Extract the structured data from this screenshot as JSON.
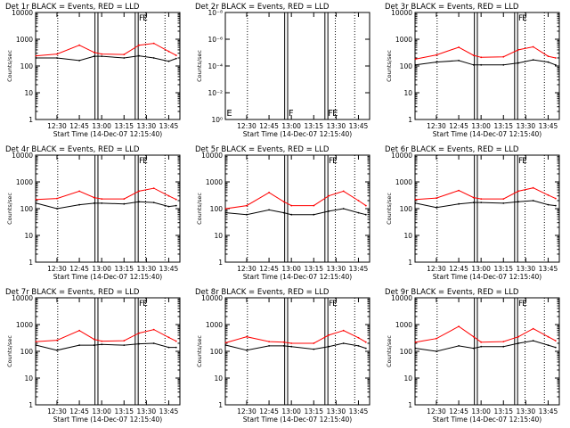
{
  "figure": {
    "xlabel": "Start Time (14-Dec-07 12:15:40)",
    "ylabel": "Counts/sec",
    "x_ticks": [
      "12:30",
      "12:45",
      "13:00",
      "13:15",
      "13:30",
      "13:45"
    ],
    "y_ticks": [
      "1",
      "10",
      "100",
      "1000",
      "10000"
    ],
    "y_ticks_det2": [
      "10⁰",
      "10⁻²",
      "10⁻⁴",
      "10⁻⁶",
      "10⁻⁸"
    ],
    "colors": {
      "events": "#000000",
      "lld": "#ff0000",
      "background": "#ffffff"
    }
  },
  "chart_data": [
    {
      "type": "line",
      "title": "Det 1r  BLACK = Events, RED = LLD",
      "xlabel": "Start Time (14-Dec-07 12:15:40)",
      "ylabel": "Counts/sec",
      "yscale": "log",
      "ylim": [
        1,
        10000
      ],
      "x": [
        "12:16",
        "12:30",
        "12:45",
        "12:55",
        "13:00",
        "13:15",
        "13:25",
        "13:35",
        "13:45",
        "13:50"
      ],
      "series": [
        {
          "name": "Events",
          "color": "#000000",
          "values": [
            200,
            200,
            160,
            230,
            230,
            200,
            240,
            200,
            150,
            190
          ]
        },
        {
          "name": "LLD",
          "color": "#ff0000",
          "values": [
            240,
            280,
            600,
            320,
            280,
            270,
            600,
            700,
            350,
            250
          ]
        }
      ],
      "markers": [
        "F",
        "E"
      ],
      "markers_lower": []
    },
    {
      "type": "line",
      "title": "Det 2r  BLACK = Events, RED = LLD",
      "xlabel": "Start Time (14-Dec-07 12:15:40)",
      "ylabel": "Counts/sec",
      "yscale": "log",
      "ylim": [
        1e-08,
        1
      ],
      "x": [
        "12:16",
        "12:30",
        "12:45",
        "12:55",
        "13:00",
        "13:15",
        "13:25",
        "13:35",
        "13:45",
        "13:50"
      ],
      "series": [],
      "markers": [],
      "markers_lower": [
        "E",
        "F",
        "F",
        "E"
      ]
    },
    {
      "type": "line",
      "title": "Det 3r  BLACK = Events, RED = LLD",
      "xlabel": "Start Time (14-Dec-07 12:15:40)",
      "ylabel": "Counts/sec",
      "yscale": "log",
      "ylim": [
        1,
        10000
      ],
      "x": [
        "12:16",
        "12:30",
        "12:45",
        "12:55",
        "13:00",
        "13:15",
        "13:25",
        "13:35",
        "13:45",
        "13:50"
      ],
      "series": [
        {
          "name": "Events",
          "color": "#000000",
          "values": [
            110,
            140,
            160,
            110,
            110,
            110,
            130,
            170,
            140,
            110
          ]
        },
        {
          "name": "LLD",
          "color": "#ff0000",
          "values": [
            180,
            260,
            500,
            250,
            210,
            220,
            400,
            520,
            230,
            200
          ]
        }
      ],
      "markers": [
        "F",
        "E"
      ],
      "markers_lower": []
    },
    {
      "type": "line",
      "title": "Det 4r  BLACK = Events, RED = LLD",
      "xlabel": "Start Time (14-Dec-07 12:15:40)",
      "ylabel": "Counts/sec",
      "yscale": "log",
      "ylim": [
        1,
        10000
      ],
      "x": [
        "12:16",
        "12:30",
        "12:45",
        "12:55",
        "13:00",
        "13:15",
        "13:25",
        "13:35",
        "13:45",
        "13:50"
      ],
      "series": [
        {
          "name": "Events",
          "color": "#000000",
          "values": [
            160,
            100,
            140,
            160,
            160,
            150,
            180,
            170,
            120,
            130
          ]
        },
        {
          "name": "LLD",
          "color": "#ff0000",
          "values": [
            220,
            240,
            450,
            260,
            230,
            230,
            450,
            580,
            300,
            220
          ]
        }
      ],
      "markers": [
        "F",
        "E"
      ],
      "markers_lower": []
    },
    {
      "type": "line",
      "title": "Det 5r  BLACK = Events, RED = LLD",
      "xlabel": "Start Time (14-Dec-07 12:15:40)",
      "ylabel": "Counts/sec",
      "yscale": "log",
      "ylim": [
        1,
        10000
      ],
      "x": [
        "12:16",
        "12:30",
        "12:45",
        "12:55",
        "13:00",
        "13:15",
        "13:25",
        "13:35",
        "13:45",
        "13:50"
      ],
      "series": [
        {
          "name": "Events",
          "color": "#000000",
          "values": [
            70,
            60,
            90,
            70,
            60,
            60,
            80,
            100,
            70,
            60
          ]
        },
        {
          "name": "LLD",
          "color": "#ff0000",
          "values": [
            100,
            130,
            400,
            180,
            130,
            130,
            300,
            450,
            200,
            130
          ]
        }
      ],
      "markers": [
        "F",
        "E"
      ],
      "markers_lower": []
    },
    {
      "type": "line",
      "title": "Det 6r  BLACK = Events, RED = LLD",
      "xlabel": "Start Time (14-Dec-07 12:15:40)",
      "ylabel": "Counts/sec",
      "yscale": "log",
      "ylim": [
        1,
        10000
      ],
      "x": [
        "12:16",
        "12:30",
        "12:45",
        "12:55",
        "13:00",
        "13:15",
        "13:25",
        "13:35",
        "13:45",
        "13:50"
      ],
      "series": [
        {
          "name": "Events",
          "color": "#000000",
          "values": [
            160,
            110,
            150,
            170,
            170,
            160,
            180,
            200,
            140,
            130
          ]
        },
        {
          "name": "LLD",
          "color": "#ff0000",
          "values": [
            220,
            250,
            480,
            260,
            230,
            230,
            450,
            600,
            320,
            240
          ]
        }
      ],
      "markers": [
        "F",
        "E"
      ],
      "markers_lower": []
    },
    {
      "type": "line",
      "title": "Det 7r  BLACK = Events, RED = LLD",
      "xlabel": "Start Time (14-Dec-07 12:15:40)",
      "ylabel": "Counts/sec",
      "yscale": "log",
      "ylim": [
        1,
        10000
      ],
      "x": [
        "12:16",
        "12:30",
        "12:45",
        "12:55",
        "13:00",
        "13:15",
        "13:25",
        "13:35",
        "13:45",
        "13:50"
      ],
      "series": [
        {
          "name": "Events",
          "color": "#000000",
          "values": [
            170,
            110,
            170,
            170,
            180,
            170,
            190,
            200,
            140,
            140
          ]
        },
        {
          "name": "LLD",
          "color": "#ff0000",
          "values": [
            230,
            260,
            600,
            280,
            240,
            250,
            480,
            650,
            330,
            240
          ]
        }
      ],
      "markers": [
        "F",
        "E"
      ],
      "markers_lower": []
    },
    {
      "type": "line",
      "title": "Det 8r  BLACK = Events, RED = LLD",
      "xlabel": "Start Time (14-Dec-07 12:15:40)",
      "ylabel": "Counts/sec",
      "yscale": "log",
      "ylim": [
        1,
        10000
      ],
      "x": [
        "12:16",
        "12:30",
        "12:45",
        "12:55",
        "13:00",
        "13:15",
        "13:25",
        "13:35",
        "13:45",
        "13:50"
      ],
      "series": [
        {
          "name": "Events",
          "color": "#000000",
          "values": [
            170,
            110,
            160,
            160,
            150,
            120,
            150,
            200,
            160,
            130
          ]
        },
        {
          "name": "LLD",
          "color": "#ff0000",
          "values": [
            210,
            350,
            230,
            220,
            200,
            200,
            400,
            600,
            320,
            220
          ]
        }
      ],
      "markers": [
        "F",
        "E"
      ],
      "markers_lower": []
    },
    {
      "type": "line",
      "title": "Det 9r  BLACK = Events, RED = LLD",
      "xlabel": "Start Time (14-Dec-07 12:15:40)",
      "ylabel": "Counts/sec",
      "yscale": "log",
      "ylim": [
        1,
        10000
      ],
      "x": [
        "12:16",
        "12:30",
        "12:45",
        "12:55",
        "13:00",
        "13:15",
        "13:25",
        "13:35",
        "13:45",
        "13:50"
      ],
      "series": [
        {
          "name": "Events",
          "color": "#000000",
          "values": [
            130,
            100,
            160,
            130,
            150,
            150,
            200,
            250,
            170,
            140
          ]
        },
        {
          "name": "LLD",
          "color": "#ff0000",
          "values": [
            220,
            300,
            850,
            350,
            220,
            230,
            350,
            700,
            350,
            250
          ]
        }
      ],
      "markers": [
        "F",
        "E"
      ],
      "markers_lower": []
    }
  ]
}
